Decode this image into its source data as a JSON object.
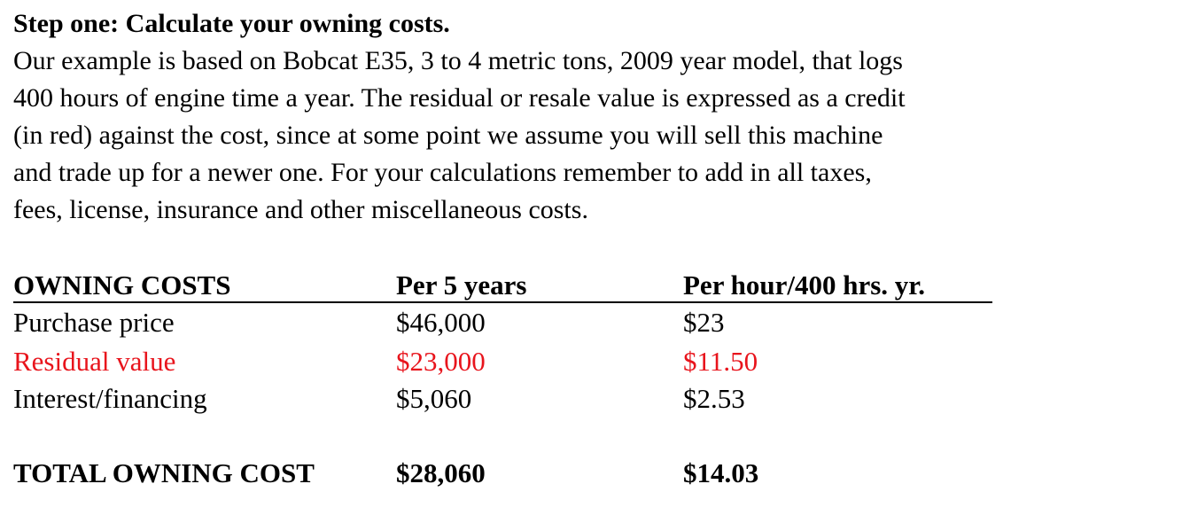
{
  "heading": "Step one: Calculate your owning costs.",
  "paragraph_lines": [
    "Our example is based on Bobcat E35, 3 to 4 metric tons, 2009 year model, that logs",
    "400 hours of engine time a year. The residual or resale value is expressed as a credit",
    "(in red) against the cost, since at some point we assume you will sell this machine",
    "and trade up for a newer one. For your calculations remember to add in all taxes,",
    "fees, license, insurance and other miscellaneous costs."
  ],
  "table": {
    "headers": [
      "OWNING COSTS",
      "Per 5 years",
      "Per hour/400 hrs. yr."
    ],
    "rows": [
      {
        "label": "Purchase price",
        "per_5_years": "$46,000",
        "per_hour": "$23",
        "color": "#000000"
      },
      {
        "label": "Residual value",
        "per_5_years": "$23,000",
        "per_hour": "$11.50",
        "color": "#e8141c"
      },
      {
        "label": "Interest/financing",
        "per_5_years": "$5,060",
        "per_hour": "$2.53",
        "color": "#000000"
      }
    ],
    "total": {
      "label": "TOTAL OWNING COST",
      "per_5_years": "$28,060",
      "per_hour": "$14.03"
    }
  },
  "colors": {
    "text": "#000000",
    "residual_credit": "#e8141c"
  }
}
